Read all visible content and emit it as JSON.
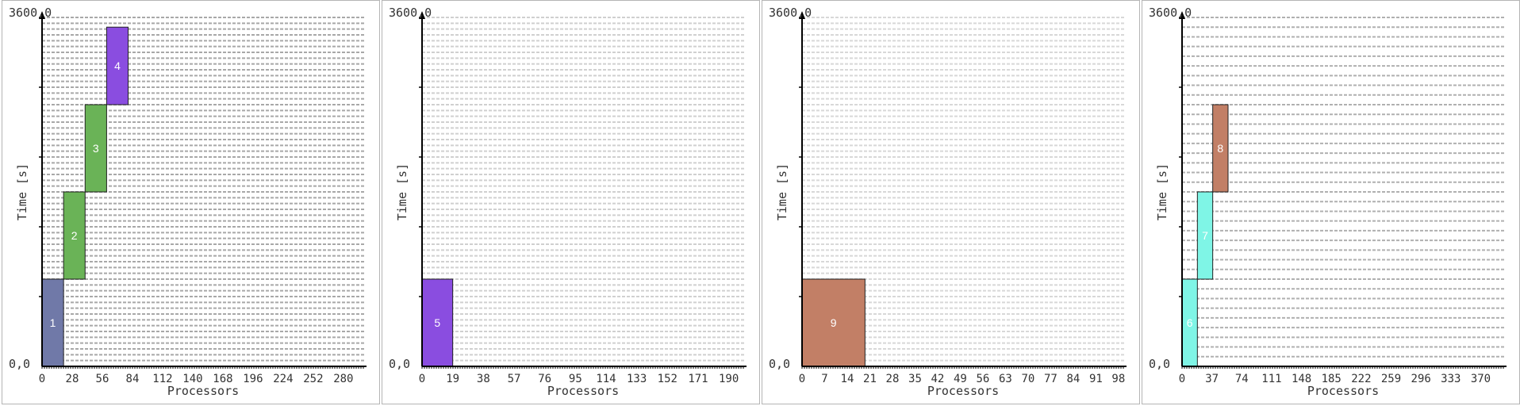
{
  "chart_data": [
    {
      "type": "bar",
      "xlabel": "Processors",
      "ylabel": "Time [s]",
      "y_min_label": "0,0",
      "y_max_label": "3600,0",
      "ylim": [
        0,
        3600
      ],
      "xlim": [
        0,
        300
      ],
      "x_tick_labels": [
        "0",
        "28",
        "56",
        "84",
        "112",
        "140",
        "168",
        "196",
        "224",
        "252",
        "280"
      ],
      "x_ticks": [
        0,
        28,
        56,
        84,
        112,
        140,
        168,
        196,
        224,
        252,
        280
      ],
      "grid_lines": 60,
      "grid_color": "#a8a8a8",
      "jobs": [
        {
          "label": "1",
          "p_start": 0,
          "p_end": 20,
          "t_start": 0,
          "t_end": 900,
          "color": "#7079a8"
        },
        {
          "label": "2",
          "p_start": 20,
          "p_end": 40,
          "t_start": 900,
          "t_end": 1800,
          "color": "#6ab357"
        },
        {
          "label": "3",
          "p_start": 40,
          "p_end": 60,
          "t_start": 1800,
          "t_end": 2700,
          "color": "#6ab357"
        },
        {
          "label": "4",
          "p_start": 60,
          "p_end": 80,
          "t_start": 2700,
          "t_end": 3500,
          "color": "#8a4de0"
        }
      ]
    },
    {
      "type": "bar",
      "xlabel": "Processors",
      "ylabel": "Time [s]",
      "y_min_label": "0,0",
      "y_max_label": "3600,0",
      "ylim": [
        0,
        3600
      ],
      "xlim": [
        0,
        200
      ],
      "x_tick_labels": [
        "0",
        "19",
        "38",
        "57",
        "76",
        "95",
        "114",
        "133",
        "152",
        "171",
        "190"
      ],
      "x_ticks": [
        0,
        19,
        38,
        57,
        76,
        95,
        114,
        133,
        152,
        171,
        190
      ],
      "grid_lines": 60,
      "grid_color": "#d0d0d0",
      "jobs": [
        {
          "label": "5",
          "p_start": 0,
          "p_end": 19,
          "t_start": 0,
          "t_end": 900,
          "color": "#8a4de0"
        }
      ]
    },
    {
      "type": "bar",
      "xlabel": "Processors",
      "ylabel": "Time [s]",
      "y_min_label": "0,0",
      "y_max_label": "3600,0",
      "ylim": [
        0,
        3600
      ],
      "xlim": [
        0,
        100
      ],
      "x_tick_labels": [
        "0",
        "7",
        "14",
        "21",
        "28",
        "35",
        "42",
        "49",
        "56",
        "63",
        "70",
        "77",
        "84",
        "91",
        "98"
      ],
      "x_ticks": [
        0,
        7,
        14,
        21,
        28,
        35,
        42,
        49,
        56,
        63,
        70,
        77,
        84,
        91,
        98
      ],
      "grid_lines": 60,
      "grid_color": "#d8d8d8",
      "jobs": [
        {
          "label": "9",
          "p_start": 0,
          "p_end": 19.5,
          "t_start": 0,
          "t_end": 900,
          "color": "#c27f66"
        }
      ]
    },
    {
      "type": "bar",
      "xlabel": "Processors",
      "ylabel": "Time [s]",
      "y_min_label": "0,0",
      "y_max_label": "3600,0",
      "ylim": [
        0,
        3600
      ],
      "xlim": [
        0,
        400
      ],
      "x_tick_labels": [
        "0",
        "37",
        "74",
        "111",
        "148",
        "185",
        "222",
        "259",
        "296",
        "333",
        "370"
      ],
      "x_ticks": [
        0,
        37,
        74,
        111,
        148,
        185,
        222,
        259,
        296,
        333,
        370
      ],
      "grid_lines": 36,
      "grid_color": "#b0b0b0",
      "jobs": [
        {
          "label": "6",
          "p_start": 0,
          "p_end": 19,
          "t_start": 0,
          "t_end": 900,
          "color": "#7ff5e6"
        },
        {
          "label": "7",
          "p_start": 19,
          "p_end": 38,
          "t_start": 900,
          "t_end": 1800,
          "color": "#7ff5e6"
        },
        {
          "label": "8",
          "p_start": 38,
          "p_end": 57,
          "t_start": 1800,
          "t_end": 2700,
          "color": "#c27f66"
        }
      ]
    }
  ]
}
